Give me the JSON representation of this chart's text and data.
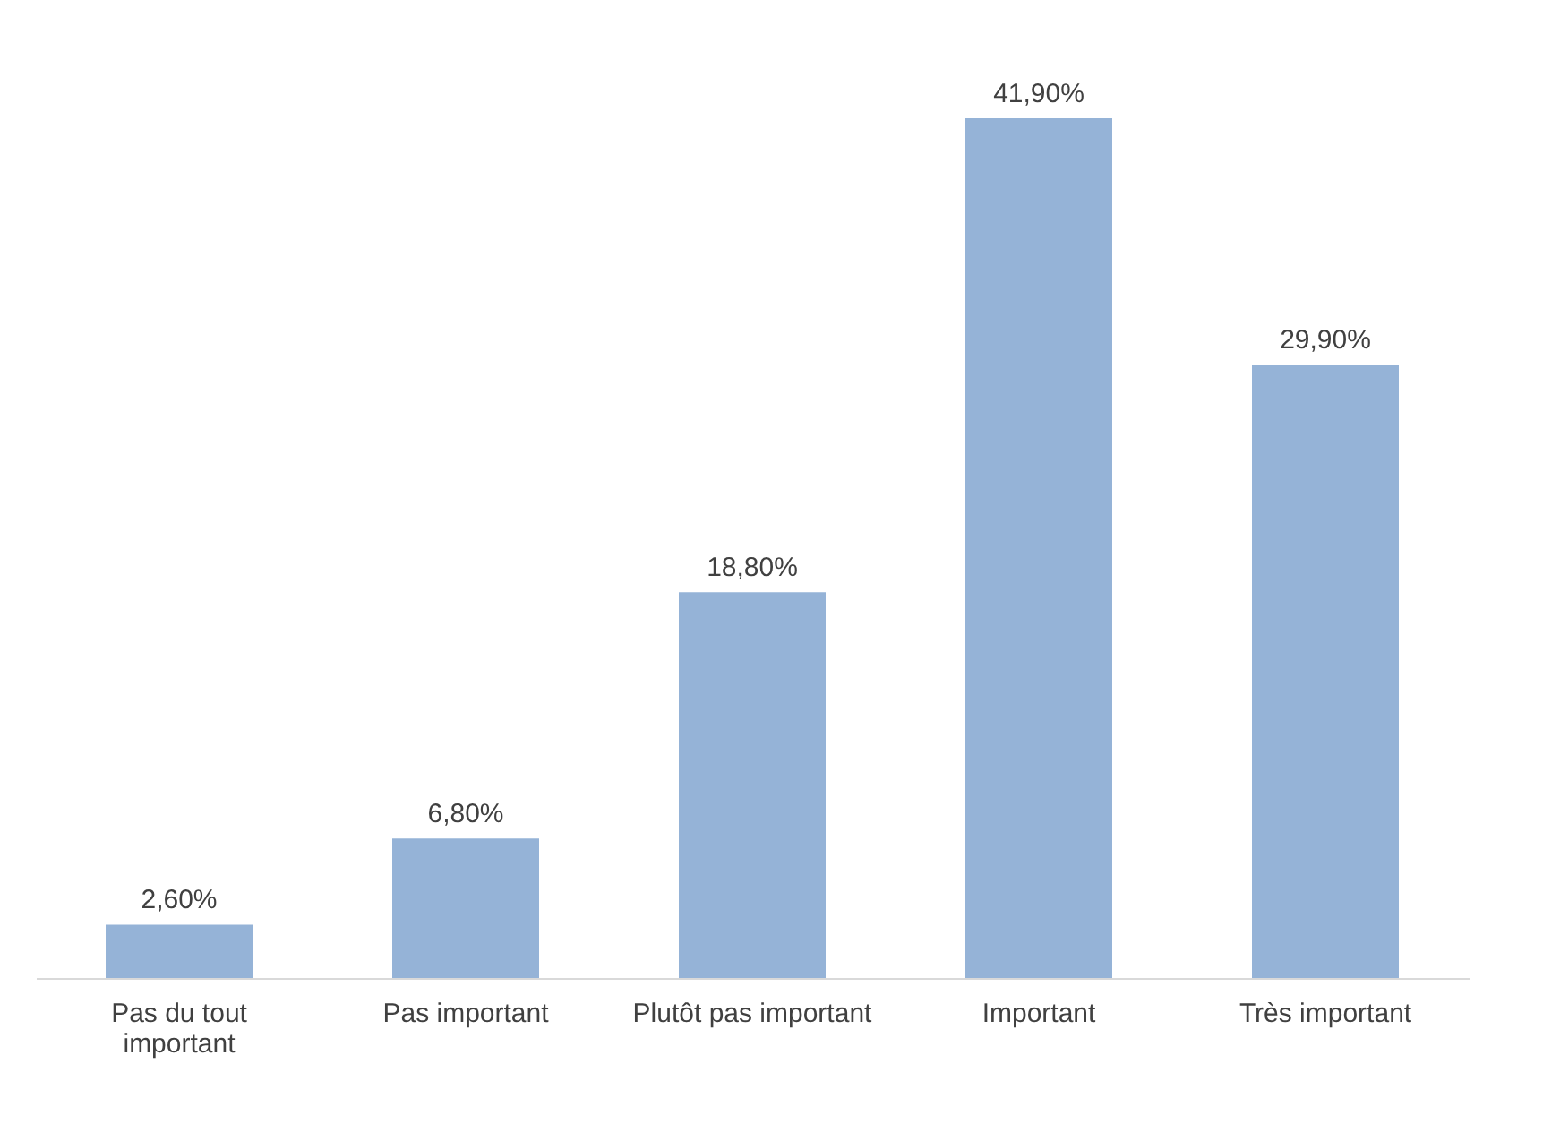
{
  "chart_data": {
    "type": "bar",
    "categories": [
      "Pas du tout\nimportant",
      "Pas important",
      "Plutôt pas important",
      "Important",
      "Très important"
    ],
    "values": [
      2.6,
      6.8,
      18.8,
      41.9,
      29.9
    ],
    "value_labels": [
      "2,60%",
      "6,80%",
      "18,80%",
      "41,90%",
      "29,90%"
    ],
    "color": "#95b3d7",
    "grid": false
  }
}
